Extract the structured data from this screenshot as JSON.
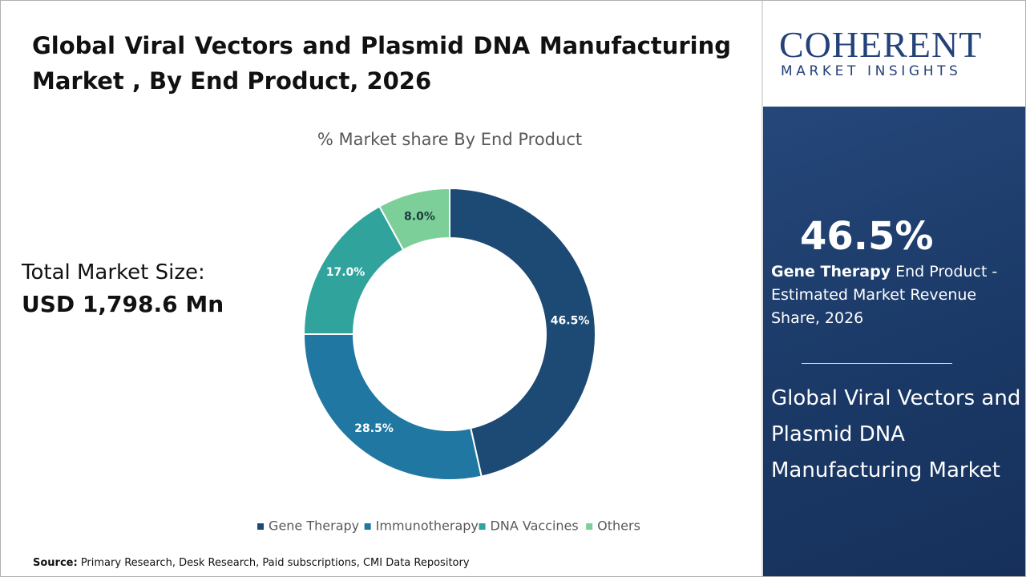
{
  "header": {
    "title": "Global Viral Vectors and Plasmid DNA Manufacturing Market , By End Product, 2026"
  },
  "market_size": {
    "label": "Total Market Size:",
    "value": "USD 1,798.6 Mn"
  },
  "chart_data": {
    "type": "pie",
    "donut": true,
    "title": "% Market share By End Product",
    "categories": [
      "Gene Therapy",
      "Immunotherapy",
      "DNA Vaccines",
      "Others"
    ],
    "values": [
      46.5,
      28.5,
      17.0,
      8.0
    ],
    "value_labels": [
      "46.5%",
      "28.5%",
      "17.0%",
      "8.0%"
    ],
    "colors": [
      "#1c4a74",
      "#1f77a2",
      "#2fa39c",
      "#7ccf98"
    ],
    "legend": "bottom"
  },
  "side_panel": {
    "logo_main": "COHERENT",
    "logo_sub": "MARKET INSIGHTS",
    "stat": "46.5%",
    "stat_bold": "Gene Therapy",
    "stat_text": " End Product - Estimated Market Revenue Share, 2026",
    "market_name": "Global Viral Vectors and Plasmid DNA Manufacturing Market"
  },
  "source": {
    "label": "Source:",
    "text": " Primary Research, Desk Research, Paid subscriptions, CMI Data Repository"
  }
}
